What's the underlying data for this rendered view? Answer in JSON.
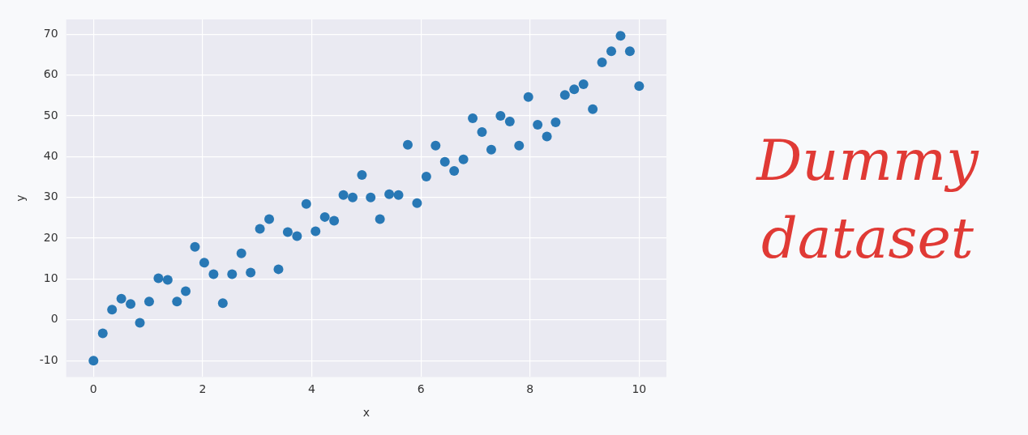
{
  "chart_data": {
    "type": "scatter",
    "xlabel": "x",
    "ylabel": "y",
    "annotations": [
      "Dummy dataset"
    ],
    "xlim": [
      -0.5,
      10.5
    ],
    "xticks": [
      0,
      2,
      4,
      6,
      8,
      10
    ],
    "ylim": [
      -14,
      73.6
    ],
    "yticks": [
      -10,
      0,
      10,
      20,
      30,
      40,
      50,
      60,
      70
    ],
    "grid": true,
    "marker": "circle",
    "legend": false,
    "series": [
      {
        "color": "#2878b5",
        "x": [
          0,
          0.17,
          0.34,
          0.51,
          0.68,
          0.85,
          1.02,
          1.19,
          1.36,
          1.53,
          1.69,
          1.86,
          2.03,
          2.2,
          2.37,
          2.54,
          2.71,
          2.88,
          3.05,
          3.22,
          3.39,
          3.56,
          3.73,
          3.9,
          4.07,
          4.24,
          4.41,
          4.58,
          4.75,
          4.92,
          5.08,
          5.25,
          5.42,
          5.59,
          5.76,
          5.93,
          6.1,
          6.27,
          6.44,
          6.61,
          6.78,
          6.95,
          7.12,
          7.29,
          7.46,
          7.63,
          7.8,
          7.97,
          8.14,
          8.31,
          8.47,
          8.64,
          8.81,
          8.98,
          9.15,
          9.32,
          9.49,
          9.66,
          9.83,
          10
        ],
        "values": [
          -10,
          -3.3,
          2.5,
          5.2,
          3.9,
          -0.7,
          4.5,
          10.2,
          9.8,
          4.5,
          7,
          17.9,
          14,
          11.2,
          4.1,
          11.2,
          16.3,
          11.6,
          22.3,
          24.7,
          12.4,
          21.5,
          20.5,
          28.4,
          21.7,
          25.2,
          24.3,
          30.6,
          30,
          35.5,
          30,
          24.7,
          30.8,
          30.6,
          42.9,
          28.6,
          35.1,
          42.7,
          38.7,
          36.5,
          39.3,
          49.4,
          46,
          41.7,
          50,
          48.6,
          42.7,
          54.6,
          47.8,
          44.9,
          48.4,
          55.1,
          56.5,
          57.7,
          51.6,
          63.1,
          65.8,
          69.6,
          65.8,
          57.3
        ]
      }
    ]
  }
}
